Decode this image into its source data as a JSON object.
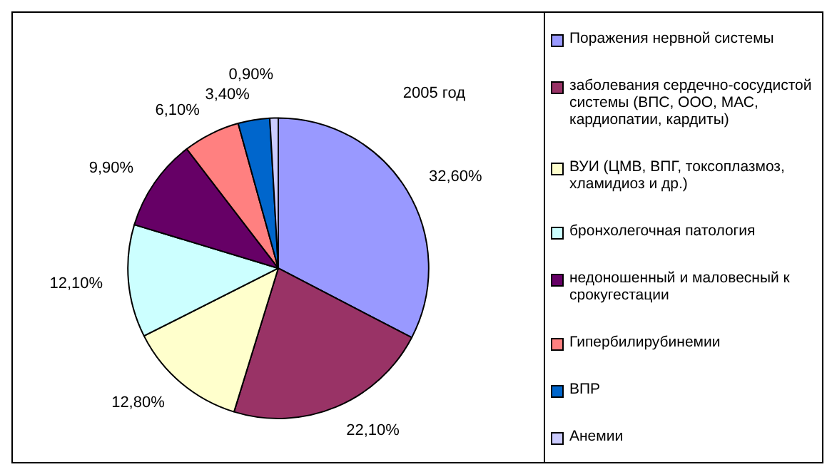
{
  "chart_data": {
    "type": "pie",
    "title": "2005 год",
    "legend": "right",
    "categories": [
      "Поражения нервной системы",
      "заболевания сердечно-сосудистой системы (ВПС, ООО, МАС, кардиопатии, кардиты)",
      "ВУИ (ЦМВ, ВПГ, токсоплазмоз, хламидиоз и др.)",
      "бронхолегочная патология",
      "недоношенный и маловесный к срокугестации",
      "Гипербилирубинемии",
      "ВПР",
      "Анемии"
    ],
    "values": [
      32.6,
      22.1,
      12.8,
      12.1,
      9.9,
      6.1,
      3.4,
      0.9
    ],
    "value_labels": [
      "32,60%",
      "22,10%",
      "12,80%",
      "12,10%",
      "9,90%",
      "6,10%",
      "3,40%",
      "0,90%"
    ],
    "colors": [
      "#9999ff",
      "#993366",
      "#ffffcc",
      "#ccffff",
      "#660066",
      "#ff8080",
      "#0066cc",
      "#ccccff"
    ]
  }
}
